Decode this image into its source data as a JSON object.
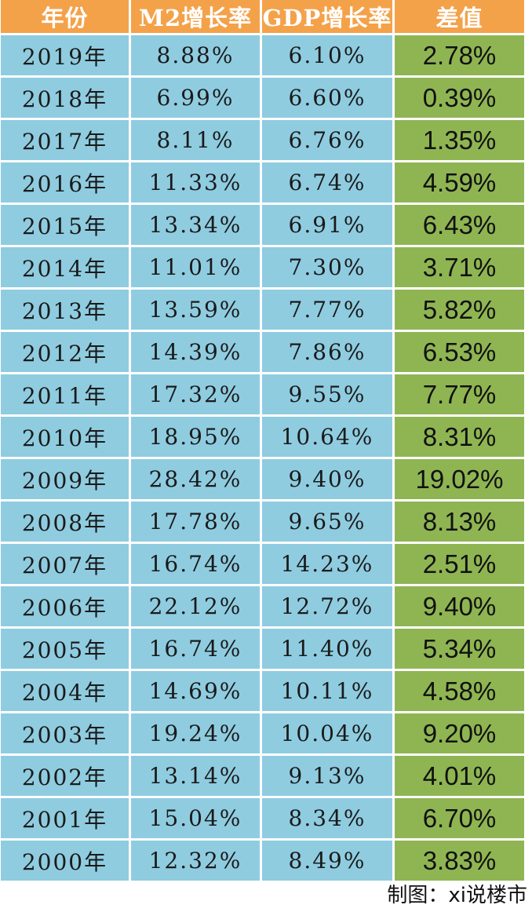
{
  "headers": [
    "年份",
    "M2增长率",
    "GDP增长率",
    "差值"
  ],
  "rows": [
    {
      "year": "2019年",
      "m2": "8.88%",
      "gdp": "6.10%",
      "diff": "2.78%"
    },
    {
      "year": "2018年",
      "m2": "6.99%",
      "gdp": "6.60%",
      "diff": "0.39%"
    },
    {
      "year": "2017年",
      "m2": "8.11%",
      "gdp": "6.76%",
      "diff": "1.35%"
    },
    {
      "year": "2016年",
      "m2": "11.33%",
      "gdp": "6.74%",
      "diff": "4.59%"
    },
    {
      "year": "2015年",
      "m2": "13.34%",
      "gdp": "6.91%",
      "diff": "6.43%"
    },
    {
      "year": "2014年",
      "m2": "11.01%",
      "gdp": "7.30%",
      "diff": "3.71%"
    },
    {
      "year": "2013年",
      "m2": "13.59%",
      "gdp": "7.77%",
      "diff": "5.82%"
    },
    {
      "year": "2012年",
      "m2": "14.39%",
      "gdp": "7.86%",
      "diff": "6.53%"
    },
    {
      "year": "2011年",
      "m2": "17.32%",
      "gdp": "9.55%",
      "diff": "7.77%"
    },
    {
      "year": "2010年",
      "m2": "18.95%",
      "gdp": "10.64%",
      "diff": "8.31%"
    },
    {
      "year": "2009年",
      "m2": "28.42%",
      "gdp": "9.40%",
      "diff": "19.02%"
    },
    {
      "year": "2008年",
      "m2": "17.78%",
      "gdp": "9.65%",
      "diff": "8.13%"
    },
    {
      "year": "2007年",
      "m2": "16.74%",
      "gdp": "14.23%",
      "diff": "2.51%"
    },
    {
      "year": "2006年",
      "m2": "22.12%",
      "gdp": "12.72%",
      "diff": "9.40%"
    },
    {
      "year": "2005年",
      "m2": "16.74%",
      "gdp": "11.40%",
      "diff": "5.34%"
    },
    {
      "year": "2004年",
      "m2": "14.69%",
      "gdp": "10.11%",
      "diff": "4.58%"
    },
    {
      "year": "2003年",
      "m2": "19.24%",
      "gdp": "10.04%",
      "diff": "9.20%"
    },
    {
      "year": "2002年",
      "m2": "13.14%",
      "gdp": "9.13%",
      "diff": "4.01%"
    },
    {
      "year": "2001年",
      "m2": "15.04%",
      "gdp": "8.34%",
      "diff": "6.70%"
    },
    {
      "year": "2000年",
      "m2": "12.32%",
      "gdp": "8.49%",
      "diff": "3.83%"
    }
  ],
  "credit": "制图：xi说楼市",
  "colors": {
    "header": "#f4a24a",
    "data_cell": "#8fcce0",
    "diff_cell": "#8fb552"
  }
}
